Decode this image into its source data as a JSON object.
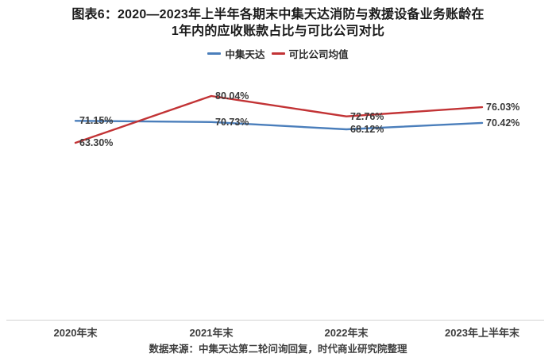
{
  "title": {
    "line1": "图表6：2020—2023年上半年各期末中集天达消防与救援设备业务账龄在",
    "line2": "1年内的应收账款占比与可比公司对比"
  },
  "legend": [
    {
      "label": "中集天达",
      "color": "#4a7ebb"
    },
    {
      "label": "可比公司均值",
      "color": "#c23335"
    }
  ],
  "chart_data": {
    "type": "line",
    "title": "图表6：2020—2023年上半年各期末中集天达消防与救援设备业务账龄在1年内的应收账款占比与可比公司对比",
    "categories": [
      "2020年末",
      "2021年末",
      "2022年末",
      "2023年上半年末"
    ],
    "series": [
      {
        "name": "中集天达",
        "color": "#4a7ebb",
        "values": [
          71.15,
          70.73,
          68.12,
          70.42
        ],
        "labels": [
          "71.15%",
          "70.73%",
          "68.12%",
          "70.42%"
        ]
      },
      {
        "name": "可比公司均值",
        "color": "#c23335",
        "values": [
          63.3,
          80.04,
          72.76,
          76.03
        ],
        "labels": [
          "63.30%",
          "80.04%",
          "72.76%",
          "76.03%"
        ]
      }
    ],
    "ylim": [
      0,
      100
    ],
    "grid": false,
    "legend_position": "top",
    "data_labels": true
  },
  "source": "数据来源：中集天达第二轮问询回复，时代商业研究院整理",
  "colors": {
    "axis_line": "#d3d3d3",
    "label_text": "#3a3a3a",
    "title_text": "#1a1a1a"
  }
}
